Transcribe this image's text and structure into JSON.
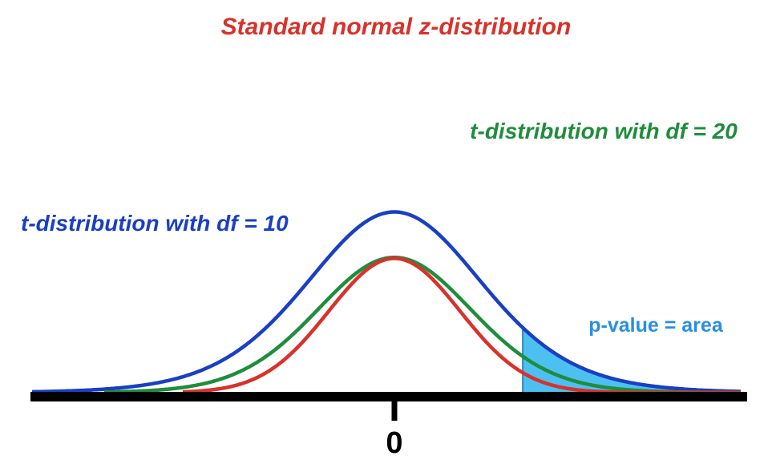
{
  "labels": {
    "title": "Standard normal z-distribution",
    "t20": "t-distribution with df = 20",
    "t10": "t-distribution with df = 10",
    "pvalue": "p-value = area",
    "zero": "0"
  },
  "colors": {
    "normal": "#d8322a",
    "t20": "#1f8d3c",
    "t10": "#1a3fc4",
    "pvalue_text": "#2a8fe0",
    "shade": "#4dc0f2",
    "axis": "#000000"
  },
  "chart_data": {
    "type": "line",
    "title": "Standard normal z-distribution",
    "x_tick_labels": [
      "0"
    ],
    "series": [
      {
        "name": "Standard normal z-distribution",
        "df": null
      },
      {
        "name": "t-distribution with df = 20",
        "df": 20
      },
      {
        "name": "t-distribution with df = 10",
        "df": 10
      }
    ],
    "shaded_region": {
      "label": "p-value = area",
      "series": "t-distribution with df = 10",
      "tail": "right"
    }
  }
}
